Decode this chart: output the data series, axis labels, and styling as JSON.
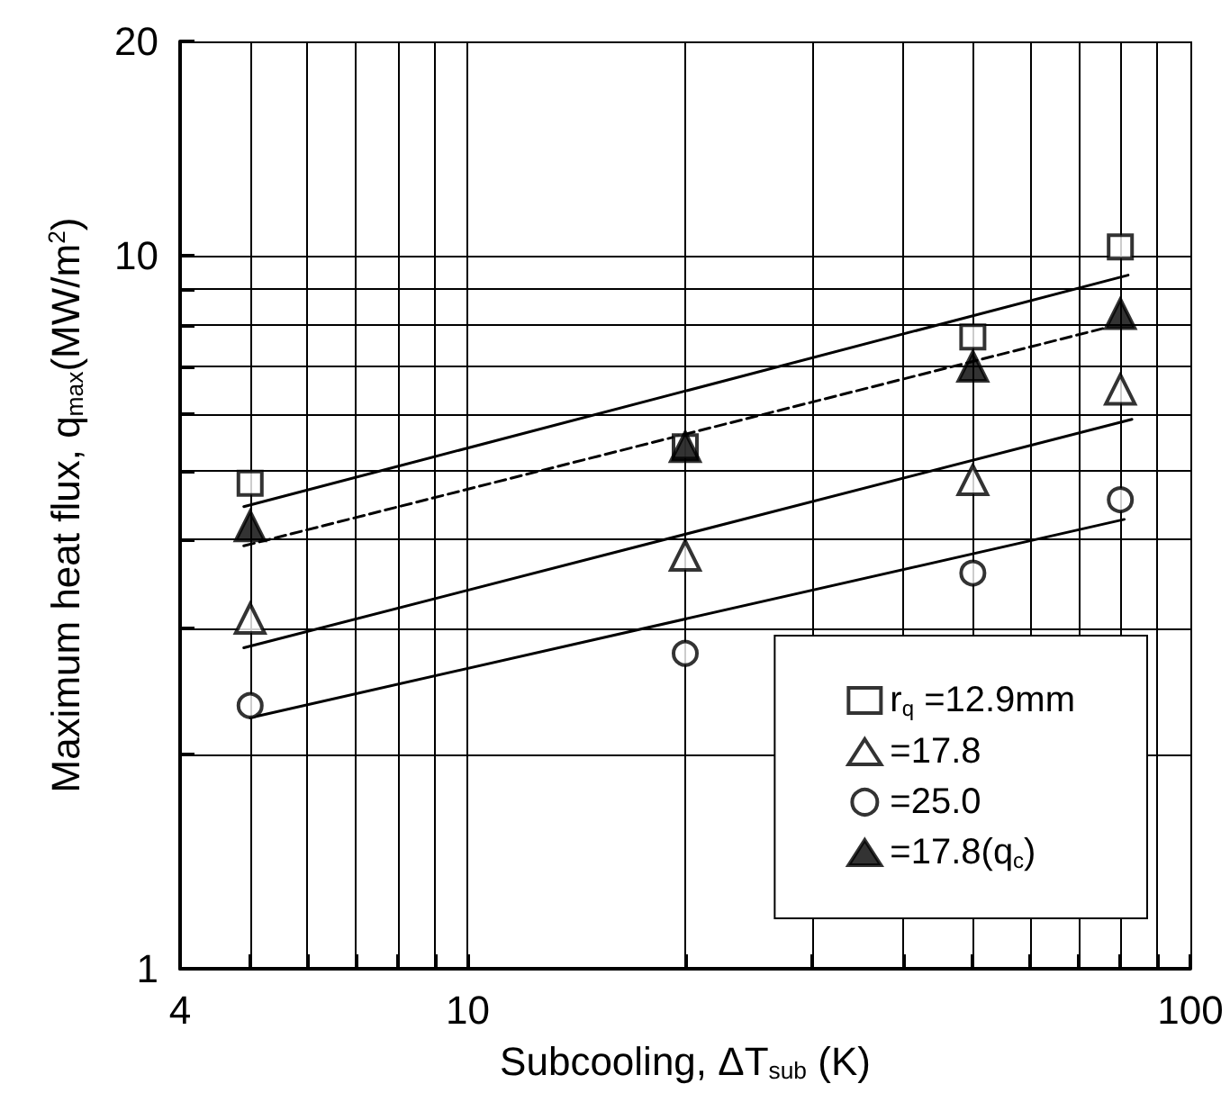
{
  "chart_data": {
    "type": "scatter",
    "xlabel": "Subcooling, ΔT$_{sub}$ (K)",
    "ylabel": "Maximum heat flux, q$_{max}$(MW/m$^{2}$)",
    "x": [
      5,
      20,
      50,
      80
    ],
    "log": "xy",
    "grid": true,
    "legend": "bottom right",
    "xlim": [
      4,
      100
    ],
    "ylim": [
      1,
      20
    ],
    "xticks": [
      4,
      {
        "value": 5,
        "label": null
      },
      {
        "value": 6,
        "label": null
      },
      {
        "value": 7,
        "label": null
      },
      {
        "value": 8,
        "label": null
      },
      {
        "value": 9,
        "label": null
      },
      10,
      {
        "value": 20,
        "label": null
      },
      {
        "value": 30,
        "label": null
      },
      {
        "value": 40,
        "label": null
      },
      {
        "value": 50,
        "label": null
      },
      {
        "value": 60,
        "label": null
      },
      {
        "value": 70,
        "label": null
      },
      {
        "value": 80,
        "label": null
      },
      {
        "value": 90,
        "label": null
      },
      100
    ],
    "yticks": [
      1,
      {
        "value": 2,
        "label": null
      },
      {
        "value": 3,
        "label": null
      },
      {
        "value": 4,
        "label": null
      },
      {
        "value": 5,
        "label": null
      },
      {
        "value": 6,
        "label": null
      },
      {
        "value": 7,
        "label": null
      },
      {
        "value": 8,
        "label": null
      },
      {
        "value": 9,
        "label": null
      },
      10,
      20
    ],
    "series": [
      {
        "name": "r$_{q}$ =12.9mm",
        "color": "#ffffff",
        "marker": "square",
        "values": [
          4.8,
          5.4,
          7.7,
          10.3
        ]
      },
      {
        "name": "=17.8",
        "color": "#ffffff",
        "marker": "triangle",
        "values": [
          3.1,
          3.8,
          4.85,
          6.5
        ]
      },
      {
        "name": "=25.0",
        "color": "#ffffff",
        "marker": "circle",
        "values": [
          2.34,
          2.77,
          3.59,
          4.55
        ]
      },
      {
        "name": "=17.8(q$_{c}$)",
        "color": "#000000",
        "marker": "triangle",
        "values": [
          4.18,
          5.4,
          7.0,
          8.3
        ]
      },
      {
        "type": "line",
        "color": "#000000",
        "marker": "none",
        "line_style": "solid",
        "x": [
          4.9,
          82
        ],
        "values": [
          4.45,
          9.4
        ]
      },
      {
        "type": "line",
        "color": "#000000",
        "marker": "none",
        "line_style": "solid",
        "x": [
          4.9,
          83
        ],
        "values": [
          2.82,
          5.9
        ]
      },
      {
        "type": "line",
        "color": "#000000",
        "marker": "none",
        "line_style": "solid",
        "x": [
          5,
          81
        ],
        "values": [
          2.25,
          4.27
        ]
      },
      {
        "type": "line",
        "color": "#000000",
        "marker": "none",
        "line_style": "dashed",
        "x": [
          4.9,
          76
        ],
        "values": [
          3.92,
          7.92
        ]
      }
    ]
  }
}
